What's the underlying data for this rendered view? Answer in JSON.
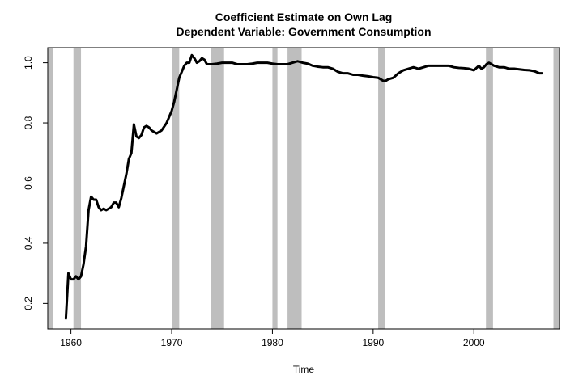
{
  "chart_data": {
    "type": "line",
    "title": "Coefficient Estimate on Own Lag",
    "subtitle": "Dependent Variable: Government Consumption",
    "xlabel": "Time",
    "ylabel": "",
    "xlim": [
      1957.7,
      2008.5
    ],
    "ylim": [
      0.115,
      1.05
    ],
    "x_ticks": [
      1960,
      1970,
      1980,
      1990,
      2000
    ],
    "x_tick_labels": [
      "1960",
      "1970",
      "1980",
      "1990",
      "2000"
    ],
    "y_ticks": [
      0.2,
      0.4,
      0.6,
      0.8,
      1.0
    ],
    "y_tick_labels": [
      "0.2",
      "0.4",
      "0.6",
      "0.8",
      "1.0"
    ],
    "grid": false,
    "legend": "none",
    "colors": {
      "line": "#000000",
      "recession": "#bebebe",
      "frame": "#000000"
    },
    "recession_bands": [
      [
        1957.75,
        1958.25
      ],
      [
        1960.25,
        1961.0
      ],
      [
        1970.0,
        1970.75
      ],
      [
        1973.9,
        1975.2
      ],
      [
        1980.0,
        1980.5
      ],
      [
        1981.5,
        1982.9
      ],
      [
        1990.5,
        1991.2
      ],
      [
        2001.2,
        2001.9
      ],
      [
        2007.9,
        2008.5
      ]
    ],
    "series": [
      {
        "x": [
          1959.5,
          1959.75,
          1960.0,
          1960.25,
          1960.5,
          1960.75,
          1961.0,
          1961.25,
          1961.5,
          1961.75,
          1962.0,
          1962.25,
          1962.5,
          1962.75,
          1963.0,
          1963.25,
          1963.5,
          1963.75,
          1964.0,
          1964.25,
          1964.5,
          1964.75,
          1965.0,
          1965.25,
          1965.5,
          1965.75,
          1966.0,
          1966.25,
          1966.5,
          1966.75,
          1967.0,
          1967.25,
          1967.5,
          1967.75,
          1968.0,
          1968.5,
          1969.0,
          1969.5,
          1970.0,
          1970.25,
          1970.5,
          1970.75,
          1971.0,
          1971.25,
          1971.5,
          1971.75,
          1972.0,
          1972.25,
          1972.5,
          1972.75,
          1973.0,
          1973.25,
          1973.5,
          1973.75,
          1974.0,
          1974.5,
          1975.0,
          1975.5,
          1976.0,
          1976.5,
          1977.0,
          1977.5,
          1978.0,
          1978.5,
          1979.0,
          1979.5,
          1980.0,
          1980.5,
          1981.0,
          1981.5,
          1982.0,
          1982.5,
          1983.0,
          1983.5,
          1984.0,
          1984.5,
          1985.0,
          1985.5,
          1986.0,
          1986.5,
          1987.0,
          1987.5,
          1988.0,
          1988.5,
          1989.0,
          1989.5,
          1990.0,
          1990.5,
          1991.0,
          1991.25,
          1991.5,
          1992.0,
          1992.5,
          1993.0,
          1993.5,
          1994.0,
          1994.5,
          1995.0,
          1995.5,
          1996.0,
          1996.5,
          1997.0,
          1997.5,
          1998.0,
          1998.5,
          1999.0,
          1999.5,
          2000.0,
          2000.5,
          2000.75,
          2001.0,
          2001.25,
          2001.5,
          2002.0,
          2002.5,
          2003.0,
          2003.5,
          2004.0,
          2004.5,
          2005.0,
          2005.5,
          2006.0,
          2006.5,
          2006.75
        ],
        "y": [
          0.15,
          0.3,
          0.28,
          0.28,
          0.29,
          0.28,
          0.29,
          0.33,
          0.39,
          0.51,
          0.555,
          0.545,
          0.545,
          0.52,
          0.51,
          0.515,
          0.51,
          0.515,
          0.52,
          0.535,
          0.535,
          0.52,
          0.55,
          0.59,
          0.63,
          0.68,
          0.7,
          0.795,
          0.755,
          0.75,
          0.76,
          0.785,
          0.79,
          0.785,
          0.775,
          0.765,
          0.775,
          0.8,
          0.84,
          0.87,
          0.91,
          0.95,
          0.97,
          0.99,
          1.0,
          1.0,
          1.025,
          1.015,
          1.0,
          1.005,
          1.015,
          1.01,
          0.995,
          0.995,
          0.995,
          0.997,
          1.0,
          1.0,
          1.0,
          0.995,
          0.995,
          0.995,
          0.997,
          1.0,
          1.0,
          1.0,
          0.997,
          0.995,
          0.995,
          0.995,
          1.0,
          1.005,
          1.0,
          0.997,
          0.99,
          0.987,
          0.985,
          0.985,
          0.98,
          0.97,
          0.965,
          0.965,
          0.96,
          0.96,
          0.957,
          0.955,
          0.952,
          0.95,
          0.94,
          0.94,
          0.945,
          0.95,
          0.965,
          0.975,
          0.98,
          0.985,
          0.98,
          0.985,
          0.99,
          0.99,
          0.99,
          0.99,
          0.99,
          0.985,
          0.983,
          0.982,
          0.98,
          0.975,
          0.99,
          0.98,
          0.985,
          0.995,
          1.0,
          0.99,
          0.985,
          0.985,
          0.98,
          0.98,
          0.978,
          0.976,
          0.975,
          0.972,
          0.965,
          0.965
        ]
      }
    ]
  }
}
